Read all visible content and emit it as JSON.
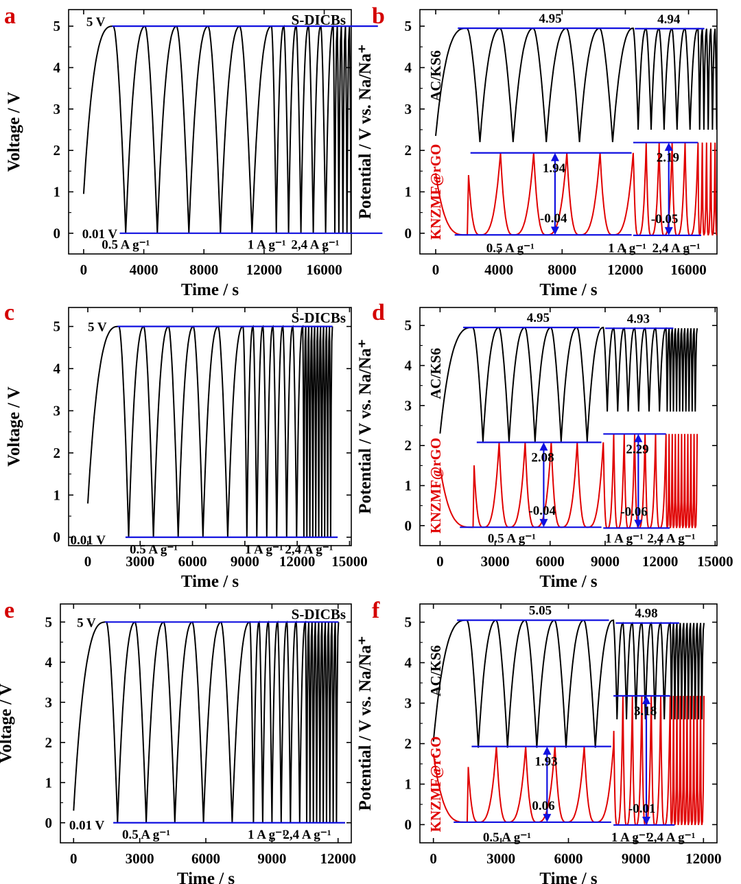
{
  "figure": {
    "panel_labels": [
      "a",
      "b",
      "c",
      "d",
      "e",
      "f"
    ]
  },
  "colors": {
    "black": "#000000",
    "red": "#e00000",
    "blue": "#1010e0",
    "label_red": "#d40000"
  },
  "chart_data": [
    {
      "type": "line",
      "panel": "a",
      "title": "S-DICBs",
      "xlabel": "Time / s",
      "ylabel": "Voltage / V",
      "xlim": [
        -1000,
        17800
      ],
      "ylim": [
        -0.5,
        5.4
      ],
      "xticks": [
        0,
        4000,
        8000,
        12000,
        16000
      ],
      "yticks": [
        0,
        1,
        2,
        3,
        4,
        5
      ],
      "cycles": {
        "start": 0,
        "v_start": 0.95,
        "v_high": 5.0,
        "v_low": 0.01,
        "charge_end": 2000,
        "groups": [
          {
            "n": 5,
            "period": 2100
          },
          {
            "n": 5,
            "period": 820
          },
          {
            "n": 11,
            "period": 270
          }
        ]
      },
      "annotations": [
        {
          "text": "5 V",
          "x": 180,
          "y": 5.12
        },
        {
          "text": "0.01 V",
          "x": -100,
          "y": 0.0
        },
        {
          "text": "0.5 A g⁻¹",
          "x": 1200,
          "y": -0.26
        },
        {
          "text": "1 A g⁻¹",
          "x": 10900,
          "y": -0.26
        },
        {
          "text": "2,4 A g⁻¹",
          "x": 13800,
          "y": -0.26
        }
      ]
    },
    {
      "type": "line",
      "panel": "b",
      "xlabel": "Time / s",
      "ylabel": "Potential / V vs. Na/Na⁺",
      "xlim": [
        -1000,
        17800
      ],
      "ylim": [
        -0.5,
        5.4
      ],
      "xticks": [
        0,
        4000,
        8000,
        12000,
        16000
      ],
      "yticks": [
        0,
        1,
        2,
        3,
        4,
        5
      ],
      "side_labels": {
        "black": "AC/KS6",
        "red": "KNZMF@rGO"
      },
      "series": [
        {
          "name": "AC/KS6",
          "color": "#000000",
          "v_start": 2.35,
          "v_high": 4.95,
          "v_high2": 4.94,
          "v_low": 2.2,
          "v_low2": 2.5
        },
        {
          "name": "KNZMF@rGO",
          "color": "#e00000",
          "v_start": 1.45,
          "v_low": -0.04,
          "v_low2": -0.05,
          "v_high": 1.94,
          "v_high2": 2.19
        }
      ],
      "cycles": {
        "start": 0,
        "charge_end": 2000,
        "groups": [
          {
            "n": 5,
            "period": 2100
          },
          {
            "n": 5,
            "period": 820
          },
          {
            "n": 11,
            "period": 270
          }
        ]
      },
      "values_shown": [
        "4.95",
        "4.94",
        "1.94",
        "2.19",
        "-0.04",
        "-0.05"
      ],
      "annotations": [
        {
          "text": "0.5 A g⁻¹",
          "x": 3200,
          "y": -0.34
        },
        {
          "text": "1 A g⁻¹",
          "x": 10900,
          "y": -0.34
        },
        {
          "text": "2,4 A g⁻¹",
          "x": 13700,
          "y": -0.34
        }
      ]
    },
    {
      "type": "line",
      "panel": "c",
      "title": "S-DICBs",
      "xlabel": "Time / s",
      "ylabel": "Voltage / V",
      "xlim": [
        -1100,
        15100
      ],
      "ylim": [
        -0.2,
        5.45
      ],
      "xticks": [
        0,
        3000,
        6000,
        9000,
        12000,
        15000
      ],
      "yticks": [
        0,
        1,
        2,
        3,
        4,
        5
      ],
      "cycles": {
        "start": 0,
        "v_start": 0.8,
        "v_high": 5.0,
        "v_low": 0.01,
        "charge_end": 1800,
        "groups": [
          {
            "n": 5,
            "period": 1420
          },
          {
            "n": 6,
            "period": 570
          },
          {
            "n": 10,
            "period": 170
          }
        ]
      },
      "annotations": [
        {
          "text": "5 V",
          "x": 0,
          "y": 5.0
        },
        {
          "text": "0.01 V",
          "x": -1000,
          "y": -0.05
        },
        {
          "text": "0.5 A g⁻¹",
          "x": 2400,
          "y": -0.27
        },
        {
          "text": "1 A g⁻¹",
          "x": 9000,
          "y": -0.27
        },
        {
          "text": "2,4 A g⁻¹",
          "x": 11300,
          "y": -0.27
        }
      ]
    },
    {
      "type": "line",
      "panel": "d",
      "xlabel": "Time / s",
      "ylabel": "Potential / V vs. Na/Na⁺",
      "xlim": [
        -1100,
        15100
      ],
      "ylim": [
        -0.5,
        5.45
      ],
      "xticks": [
        0,
        3000,
        6000,
        9000,
        12000,
        15000
      ],
      "yticks": [
        0,
        1,
        2,
        3,
        4,
        5
      ],
      "side_labels": {
        "black": "AC/KS6",
        "red": "KNZMF@rGO"
      },
      "series": [
        {
          "name": "AC/KS6",
          "color": "#000000",
          "v_start": 2.3,
          "v_high": 4.95,
          "v_high2": 4.93,
          "v_low": 2.1,
          "v_low2": 2.85
        },
        {
          "name": "KNZMF@rGO",
          "color": "#e00000",
          "v_start": 1.45,
          "v_low": -0.04,
          "v_low2": -0.06,
          "v_high": 2.08,
          "v_high2": 2.29
        }
      ],
      "cycles": {
        "start": 0,
        "charge_end": 1800,
        "groups": [
          {
            "n": 5,
            "period": 1420
          },
          {
            "n": 6,
            "period": 570
          },
          {
            "n": 10,
            "period": 170
          }
        ]
      },
      "values_shown": [
        "4.95",
        "4.93",
        "2.08",
        "2.29",
        "-0.04",
        "-0.06"
      ],
      "annotations": [
        {
          "text": "0.5 A g⁻¹",
          "x": 2600,
          "y": -0.3
        },
        {
          "text": "1 A g⁻¹",
          "x": 9000,
          "y": -0.3
        },
        {
          "text": "2,4 A g⁻¹",
          "x": 11300,
          "y": -0.3
        }
      ]
    },
    {
      "type": "line",
      "panel": "e",
      "title": "S-DICBs",
      "xlabel": "Time / s",
      "ylabel": "Voltage / V",
      "xlim": [
        -600,
        12600
      ],
      "ylim": [
        -0.5,
        5.45
      ],
      "xticks": [
        0,
        3000,
        6000,
        9000,
        12000
      ],
      "yticks": [
        0,
        1,
        2,
        3,
        4,
        5
      ],
      "cycles": {
        "start": 0,
        "v_start": 0.3,
        "v_high": 5.0,
        "v_low": 0.01,
        "charge_end": 1500,
        "groups": [
          {
            "n": 5,
            "period": 1300
          },
          {
            "n": 6,
            "period": 420
          },
          {
            "n": 10,
            "period": 150
          }
        ]
      },
      "annotations": [
        {
          "text": "5 V",
          "x": 150,
          "y": 5.0
        },
        {
          "text": "0.01 V",
          "x": -200,
          "y": -0.05
        },
        {
          "text": "0.5 A g⁻¹",
          "x": 2200,
          "y": -0.28
        },
        {
          "text": "1 A g⁻¹",
          "x": 7900,
          "y": -0.28
        },
        {
          "text": "2,4 A g⁻¹",
          "x": 9500,
          "y": -0.28
        }
      ]
    },
    {
      "type": "line",
      "panel": "f",
      "xlabel": "Time / s",
      "ylabel": "Potential / V vs. Na/Na⁺",
      "xlim": [
        -600,
        12600
      ],
      "ylim": [
        -0.45,
        5.45
      ],
      "xticks": [
        0,
        3000,
        6000,
        9000,
        12000
      ],
      "yticks": [
        0,
        1,
        2,
        3,
        4,
        5
      ],
      "side_labels": {
        "black": "AC/KS6",
        "red": "KNZMF@rGO"
      },
      "series": [
        {
          "name": "AC/KS6",
          "color": "#000000",
          "v_start": 2.05,
          "v_high": 5.05,
          "v_high2": 4.98,
          "v_low": 1.9,
          "v_low2": 2.6
        },
        {
          "name": "KNZMF@rGO",
          "color": "#e00000",
          "v_start": 1.75,
          "v_low": 0.06,
          "v_low2": -0.01,
          "v_high": 1.93,
          "v_high2": 3.18
        }
      ],
      "cycles": {
        "start": 0,
        "charge_end": 1500,
        "groups": [
          {
            "n": 5,
            "period": 1300
          },
          {
            "n": 6,
            "period": 420
          },
          {
            "n": 10,
            "period": 150
          }
        ]
      },
      "values_shown": [
        "5.05",
        "4.98",
        "1.93",
        "3.18",
        "0.06",
        "-0.01"
      ],
      "annotations": [
        {
          "text": "0.5 A g⁻¹",
          "x": 2200,
          "y": -0.3
        },
        {
          "text": "1 A g⁻¹",
          "x": 7900,
          "y": -0.3
        },
        {
          "text": "2,4 A g⁻¹",
          "x": 9500,
          "y": -0.3
        }
      ]
    }
  ]
}
